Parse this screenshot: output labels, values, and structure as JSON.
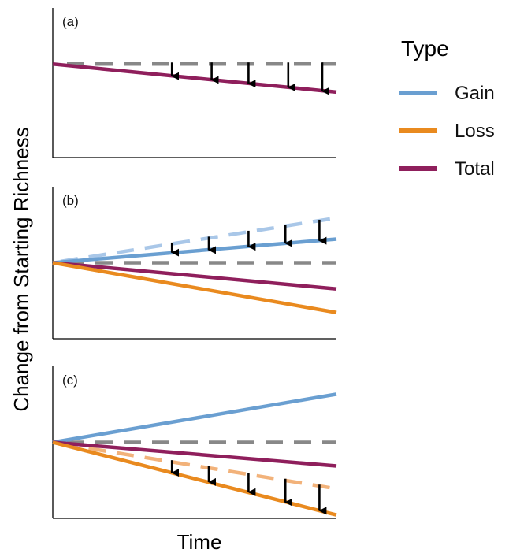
{
  "chart_data": {
    "type": "line",
    "xlabel": "Time",
    "ylabel": "Change from Starting Richness",
    "legend": {
      "title": "Type",
      "placement": "right",
      "entries": [
        {
          "name": "Gain",
          "color": "#6a9fd1"
        },
        {
          "name": "Loss",
          "color": "#e98a1f"
        },
        {
          "name": "Total",
          "color": "#8f1f5c"
        }
      ]
    },
    "panels": [
      {
        "label": "(a)",
        "xlim": [
          0,
          1
        ],
        "ylim": [
          -1,
          0.6
        ],
        "baseline": {
          "y": 0,
          "color": "#888888"
        },
        "series": [
          {
            "name": "Total",
            "color": "#8f1f5c",
            "x": [
              0,
              1
            ],
            "y": [
              0,
              -0.3
            ]
          }
        ],
        "reference_lines": [],
        "arrows": [
          {
            "x": 0.42,
            "from": 0,
            "to": -0.13
          },
          {
            "x": 0.56,
            "from": 0,
            "to": -0.17
          },
          {
            "x": 0.69,
            "from": 0,
            "to": -0.21
          },
          {
            "x": 0.83,
            "from": 0,
            "to": -0.25
          },
          {
            "x": 0.95,
            "from": 0,
            "to": -0.29
          }
        ]
      },
      {
        "label": "(b)",
        "xlim": [
          0,
          1
        ],
        "ylim": [
          -0.9,
          0.9
        ],
        "baseline": {
          "y": 0,
          "color": "#888888"
        },
        "series": [
          {
            "name": "Gain",
            "color": "#6a9fd1",
            "x": [
              0,
              1
            ],
            "y": [
              0,
              0.28
            ]
          },
          {
            "name": "Total",
            "color": "#8f1f5c",
            "x": [
              0,
              1
            ],
            "y": [
              0,
              -0.31
            ]
          },
          {
            "name": "Loss",
            "color": "#e98a1f",
            "x": [
              0,
              1
            ],
            "y": [
              0,
              -0.59
            ]
          }
        ],
        "reference_lines": [
          {
            "color": "#a9c7e8",
            "x": [
              0,
              1
            ],
            "y": [
              0,
              0.53
            ]
          }
        ],
        "arrows": [
          {
            "x": 0.42,
            "from": 0.22,
            "to": 0.12
          },
          {
            "x": 0.55,
            "from": 0.29,
            "to": 0.15
          },
          {
            "x": 0.69,
            "from": 0.36,
            "to": 0.19
          },
          {
            "x": 0.82,
            "from": 0.43,
            "to": 0.23
          },
          {
            "x": 0.94,
            "from": 0.49,
            "to": 0.26
          }
        ]
      },
      {
        "label": "(c)",
        "xlim": [
          0,
          1
        ],
        "ylim": [
          -0.9,
          0.9
        ],
        "baseline": {
          "y": 0,
          "color": "#888888"
        },
        "series": [
          {
            "name": "Gain",
            "color": "#6a9fd1",
            "x": [
              0,
              1
            ],
            "y": [
              0,
              0.57
            ]
          },
          {
            "name": "Total",
            "color": "#8f1f5c",
            "x": [
              0,
              1
            ],
            "y": [
              0,
              -0.28
            ]
          },
          {
            "name": "Loss",
            "color": "#e98a1f",
            "x": [
              0,
              1
            ],
            "y": [
              0,
              -0.86
            ]
          }
        ],
        "reference_lines": [
          {
            "color": "#f2b27a",
            "x": [
              0,
              1
            ],
            "y": [
              0,
              -0.55
            ]
          }
        ],
        "arrows": [
          {
            "x": 0.42,
            "from": -0.23,
            "to": -0.36
          },
          {
            "x": 0.55,
            "from": -0.3,
            "to": -0.47
          },
          {
            "x": 0.69,
            "from": -0.38,
            "to": -0.59
          },
          {
            "x": 0.82,
            "from": -0.45,
            "to": -0.71
          },
          {
            "x": 0.94,
            "from": -0.52,
            "to": -0.81
          }
        ]
      }
    ]
  }
}
